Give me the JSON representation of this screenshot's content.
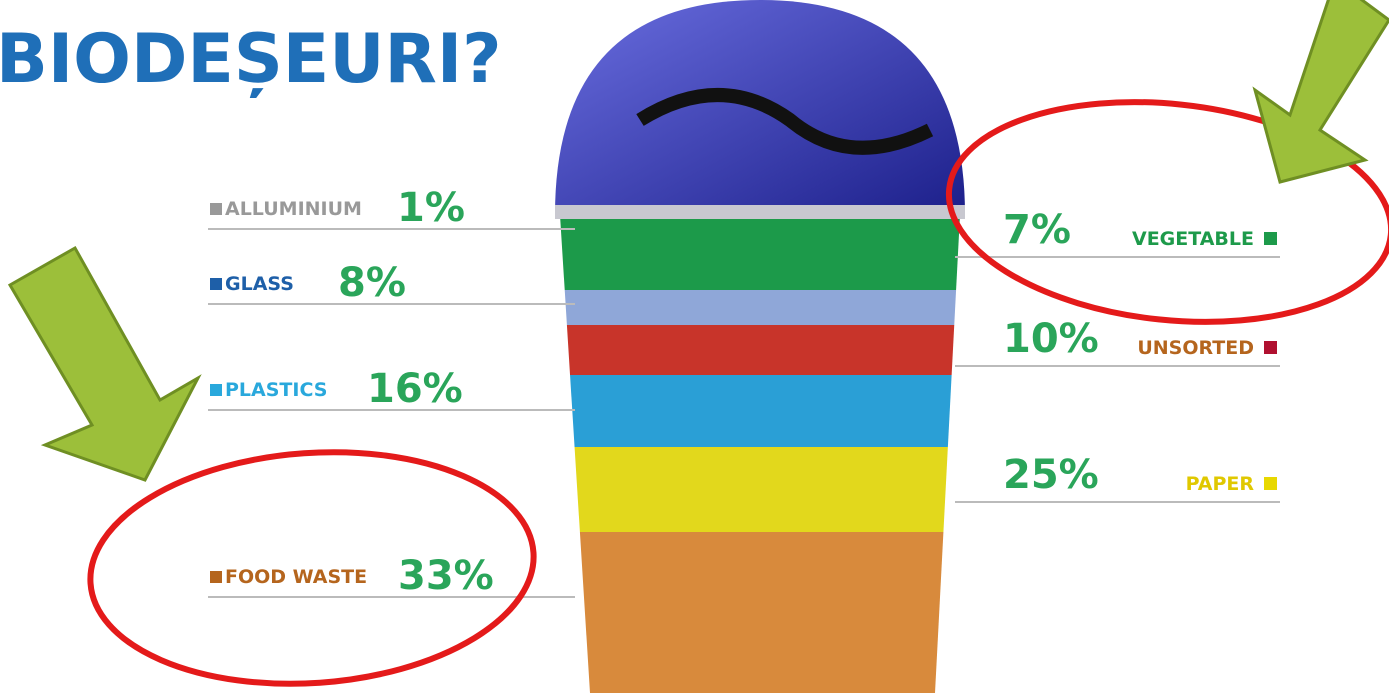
{
  "title": "BIODEȘEURI?",
  "left_items": [
    {
      "name": "ALLUMINIUM",
      "percent": "1%",
      "color": "#999999"
    },
    {
      "name": "GLASS",
      "percent": "8%",
      "color": "#1e5fa8"
    },
    {
      "name": "PLASTICS",
      "percent": "16%",
      "color": "#29a8dc"
    },
    {
      "name": "FOOD WASTE",
      "percent": "33%",
      "color": "#b5651d"
    }
  ],
  "right_items": [
    {
      "name": "VEGETABLE",
      "percent": "7%",
      "color": "#1d9a4a"
    },
    {
      "name": "UNSORTED",
      "percent": "10%",
      "color": "#b01030"
    },
    {
      "name": "PAPER",
      "percent": "25%",
      "color": "#e8d800"
    }
  ]
}
